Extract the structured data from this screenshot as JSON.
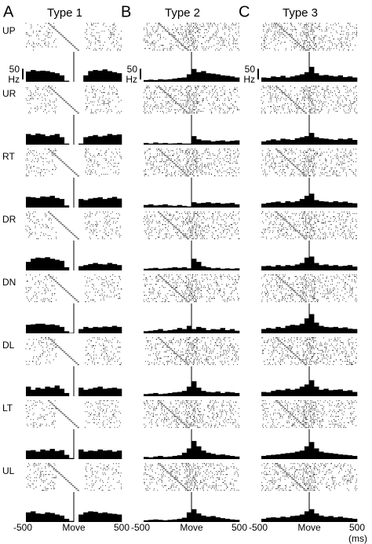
{
  "panels": [
    {
      "letter": "A",
      "title": "Type 1"
    },
    {
      "letter": "B",
      "title": "Type 2"
    },
    {
      "letter": "C",
      "title": "Type 3"
    }
  ],
  "rows": [
    "UP",
    "UR",
    "RT",
    "DR",
    "DN",
    "DL",
    "LT",
    "UL"
  ],
  "axis": {
    "xlim": [
      -500,
      500
    ],
    "xticks": [
      -500,
      {
        "value": 0,
        "label": "Move"
      },
      500
    ],
    "xunit": "(ms)",
    "bins": [
      -500,
      -450,
      -400,
      -350,
      -300,
      -250,
      -200,
      -150,
      -100,
      -50,
      0,
      50,
      100,
      150,
      200,
      250,
      300,
      350,
      400,
      450,
      500
    ],
    "ylim": [
      0,
      140
    ],
    "scalebar": {
      "value": 50,
      "unit": "Hz"
    }
  },
  "chart_data": [
    {
      "type": "histogram",
      "values": [
        48,
        55,
        50,
        52,
        50,
        45,
        40,
        30,
        5,
        0,
        0,
        0,
        30,
        50,
        55,
        52,
        58,
        50,
        45,
        40
      ]
    },
    {
      "type": "histogram",
      "values": [
        50,
        45,
        52,
        48,
        40,
        45,
        50,
        35,
        5,
        0,
        0,
        5,
        35,
        40,
        45,
        38,
        42,
        50,
        45,
        48
      ]
    },
    {
      "type": "histogram",
      "values": [
        50,
        48,
        45,
        52,
        50,
        55,
        45,
        40,
        10,
        0,
        0,
        40,
        35,
        42,
        45,
        48,
        40,
        45,
        50,
        42
      ]
    },
    {
      "type": "histogram",
      "values": [
        40,
        55,
        60,
        58,
        62,
        55,
        50,
        45,
        15,
        0,
        0,
        20,
        25,
        30,
        35,
        30,
        28,
        35,
        30,
        25
      ]
    },
    {
      "type": "histogram",
      "values": [
        40,
        42,
        45,
        45,
        40,
        42,
        38,
        30,
        10,
        2,
        0,
        20,
        30,
        25,
        30,
        28,
        32,
        30,
        35,
        30
      ]
    },
    {
      "type": "histogram",
      "values": [
        45,
        30,
        40,
        35,
        45,
        40,
        50,
        35,
        15,
        0,
        0,
        40,
        30,
        35,
        40,
        45,
        35,
        38,
        40,
        35
      ]
    },
    {
      "type": "histogram",
      "values": [
        40,
        42,
        35,
        45,
        40,
        48,
        38,
        42,
        20,
        5,
        0,
        45,
        35,
        40,
        38,
        45,
        40,
        42,
        35,
        40
      ]
    },
    {
      "type": "histogram",
      "values": [
        45,
        50,
        40,
        38,
        45,
        42,
        35,
        30,
        15,
        5,
        0,
        35,
        45,
        50,
        48,
        42,
        45,
        40,
        38,
        35
      ]
    },
    {
      "type": "histogram",
      "values": [
        8,
        10,
        8,
        12,
        10,
        12,
        15,
        18,
        20,
        35,
        60,
        45,
        50,
        40,
        38,
        35,
        30,
        28,
        25,
        20
      ]
    },
    {
      "type": "histogram",
      "values": [
        8,
        5,
        10,
        6,
        8,
        5,
        6,
        8,
        5,
        5,
        40,
        25,
        20,
        20,
        15,
        18,
        20,
        15,
        18,
        20
      ]
    },
    {
      "type": "histogram",
      "values": [
        12,
        15,
        10,
        12,
        15,
        10,
        8,
        12,
        8,
        5,
        25,
        20,
        22,
        25,
        20,
        22,
        18,
        20,
        22,
        15
      ]
    },
    {
      "type": "histogram",
      "values": [
        8,
        10,
        12,
        8,
        10,
        12,
        15,
        12,
        15,
        10,
        55,
        40,
        20,
        15,
        10,
        12,
        8,
        10,
        8,
        10
      ]
    },
    {
      "type": "histogram",
      "values": [
        10,
        12,
        15,
        20,
        12,
        15,
        18,
        25,
        20,
        35,
        20,
        30,
        25,
        15,
        20,
        18,
        25,
        15,
        20,
        12
      ]
    },
    {
      "type": "histogram",
      "values": [
        10,
        12,
        15,
        10,
        12,
        15,
        18,
        20,
        25,
        45,
        70,
        40,
        25,
        20,
        18,
        22,
        15,
        20,
        18,
        15
      ]
    },
    {
      "type": "histogram",
      "values": [
        10,
        8,
        12,
        15,
        10,
        12,
        15,
        18,
        30,
        50,
        85,
        60,
        40,
        30,
        25,
        20,
        22,
        18,
        15,
        12
      ]
    },
    {
      "type": "histogram",
      "values": [
        8,
        10,
        12,
        10,
        8,
        10,
        12,
        15,
        20,
        45,
        60,
        40,
        30,
        25,
        28,
        22,
        18,
        15,
        12,
        10
      ]
    },
    {
      "type": "histogram",
      "values": [
        20,
        18,
        25,
        22,
        28,
        20,
        25,
        30,
        35,
        45,
        70,
        40,
        30,
        32,
        28,
        25,
        30,
        22,
        25,
        20
      ]
    },
    {
      "type": "histogram",
      "values": [
        15,
        20,
        25,
        20,
        28,
        25,
        22,
        30,
        35,
        40,
        55,
        35,
        30,
        28,
        25,
        22,
        28,
        25,
        30,
        22
      ]
    },
    {
      "type": "histogram",
      "values": [
        18,
        22,
        25,
        28,
        22,
        30,
        25,
        30,
        40,
        55,
        65,
        35,
        30,
        28,
        25,
        30,
        25,
        28,
        22,
        20
      ]
    },
    {
      "type": "histogram",
      "values": [
        20,
        22,
        18,
        25,
        20,
        25,
        22,
        28,
        35,
        60,
        65,
        35,
        25,
        28,
        22,
        25,
        20,
        22,
        25,
        18
      ]
    },
    {
      "type": "histogram",
      "values": [
        20,
        25,
        22,
        30,
        25,
        35,
        40,
        38,
        45,
        70,
        90,
        50,
        35,
        30,
        28,
        30,
        25,
        28,
        22,
        20
      ]
    },
    {
      "type": "histogram",
      "values": [
        20,
        18,
        25,
        30,
        28,
        35,
        30,
        35,
        45,
        55,
        75,
        45,
        30,
        35,
        28,
        30,
        32,
        25,
        28,
        20
      ]
    },
    {
      "type": "histogram",
      "values": [
        15,
        18,
        20,
        22,
        25,
        28,
        30,
        35,
        40,
        60,
        80,
        50,
        35,
        30,
        28,
        25,
        22,
        20,
        18,
        15
      ]
    },
    {
      "type": "histogram",
      "values": [
        15,
        20,
        22,
        20,
        25,
        22,
        28,
        30,
        35,
        50,
        60,
        40,
        30,
        25,
        28,
        22,
        25,
        20,
        18,
        15
      ]
    }
  ]
}
